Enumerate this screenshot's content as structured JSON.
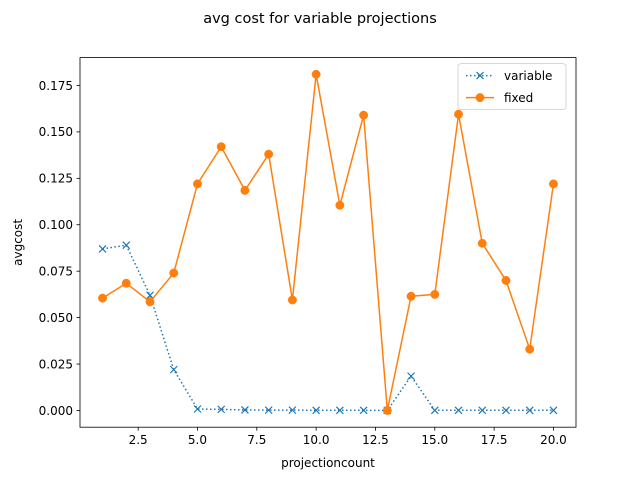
{
  "chart_data": {
    "type": "line",
    "title": "avg cost for variable projections",
    "xlabel": "projectioncount",
    "ylabel": "avgcost",
    "xlim": [
      0.05,
      20.95
    ],
    "ylim": [
      -0.009,
      0.19
    ],
    "xticks": [
      2.5,
      5.0,
      7.5,
      10.0,
      12.5,
      15.0,
      17.5,
      20.0
    ],
    "xtick_labels": [
      "2.5",
      "5.0",
      "7.5",
      "10.0",
      "12.5",
      "15.0",
      "17.5",
      "20.0"
    ],
    "yticks": [
      0.0,
      0.025,
      0.05,
      0.075,
      0.1,
      0.125,
      0.15,
      0.175
    ],
    "ytick_labels": [
      "0.000",
      "0.025",
      "0.050",
      "0.075",
      "0.100",
      "0.125",
      "0.150",
      "0.175"
    ],
    "grid": false,
    "legend_position": "top-right",
    "x": [
      1,
      2,
      3,
      4,
      5,
      6,
      7,
      8,
      9,
      10,
      11,
      12,
      13,
      14,
      15,
      16,
      17,
      18,
      19,
      20
    ],
    "series": [
      {
        "name": "variable",
        "color": "#1f77b4",
        "marker": "x",
        "linestyle": "dotted",
        "values": [
          0.087,
          0.089,
          0.062,
          0.022,
          0.0008,
          0.0006,
          0.0003,
          0.0002,
          0.0002,
          0.0001,
          0.0001,
          0.0001,
          0.0,
          0.0185,
          0.0001,
          0.0001,
          0.0001,
          0.0001,
          0.0001,
          0.0001
        ]
      },
      {
        "name": "fixed",
        "color": "#ff7f0e",
        "marker": "o",
        "linestyle": "solid",
        "values": [
          0.0605,
          0.0685,
          0.0585,
          0.074,
          0.122,
          0.142,
          0.1185,
          0.138,
          0.0595,
          0.181,
          0.1105,
          0.159,
          0.0,
          0.0615,
          0.0625,
          0.1595,
          0.09,
          0.07,
          0.033,
          0.122
        ]
      }
    ]
  }
}
